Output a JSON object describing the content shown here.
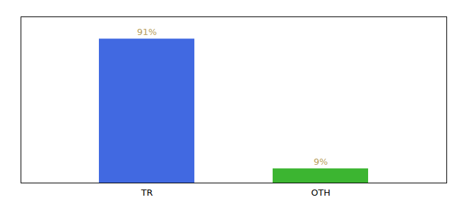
{
  "chart_data": {
    "type": "bar",
    "categories": [
      "TR",
      "OTH"
    ],
    "values": [
      91,
      9
    ],
    "value_labels": [
      "91%",
      "9%"
    ],
    "colors": [
      "#4169E1",
      "#3CB531"
    ],
    "ylim": [
      0,
      105
    ],
    "yticks": [],
    "grid": false,
    "data_labels": true,
    "tick_labels": "x"
  }
}
